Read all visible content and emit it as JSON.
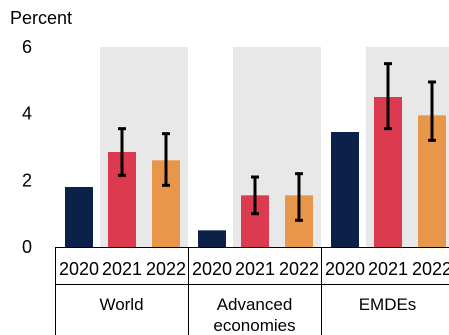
{
  "chart_data": {
    "type": "bar",
    "ylabel": "Percent",
    "ylim": [
      0,
      6
    ],
    "yticks": [
      "0",
      "2",
      "4",
      "6"
    ],
    "groups": [
      {
        "label": "World",
        "categories": [
          "2020",
          "2021",
          "2022"
        ],
        "values": [
          1.8,
          2.85,
          2.6
        ],
        "error_bars": [
          null,
          [
            2.15,
            3.55
          ],
          [
            1.85,
            3.4
          ]
        ]
      },
      {
        "label": "Advanced\neconomies",
        "categories": [
          "2020",
          "2021",
          "2022"
        ],
        "values": [
          0.5,
          1.55,
          1.55
        ],
        "error_bars": [
          null,
          [
            1.0,
            2.1
          ],
          [
            0.8,
            2.2
          ]
        ]
      },
      {
        "label": "EMDEs",
        "categories": [
          "2020",
          "2021",
          "2022"
        ],
        "values": [
          3.45,
          4.5,
          3.95
        ],
        "error_bars": [
          null,
          [
            3.55,
            5.5
          ],
          [
            3.2,
            4.95
          ]
        ]
      }
    ],
    "colors": [
      "#0b2149",
      "#dc3a4e",
      "#e8964a"
    ],
    "shade_color": "#e8e8e8",
    "grid": false,
    "legend": "none"
  }
}
